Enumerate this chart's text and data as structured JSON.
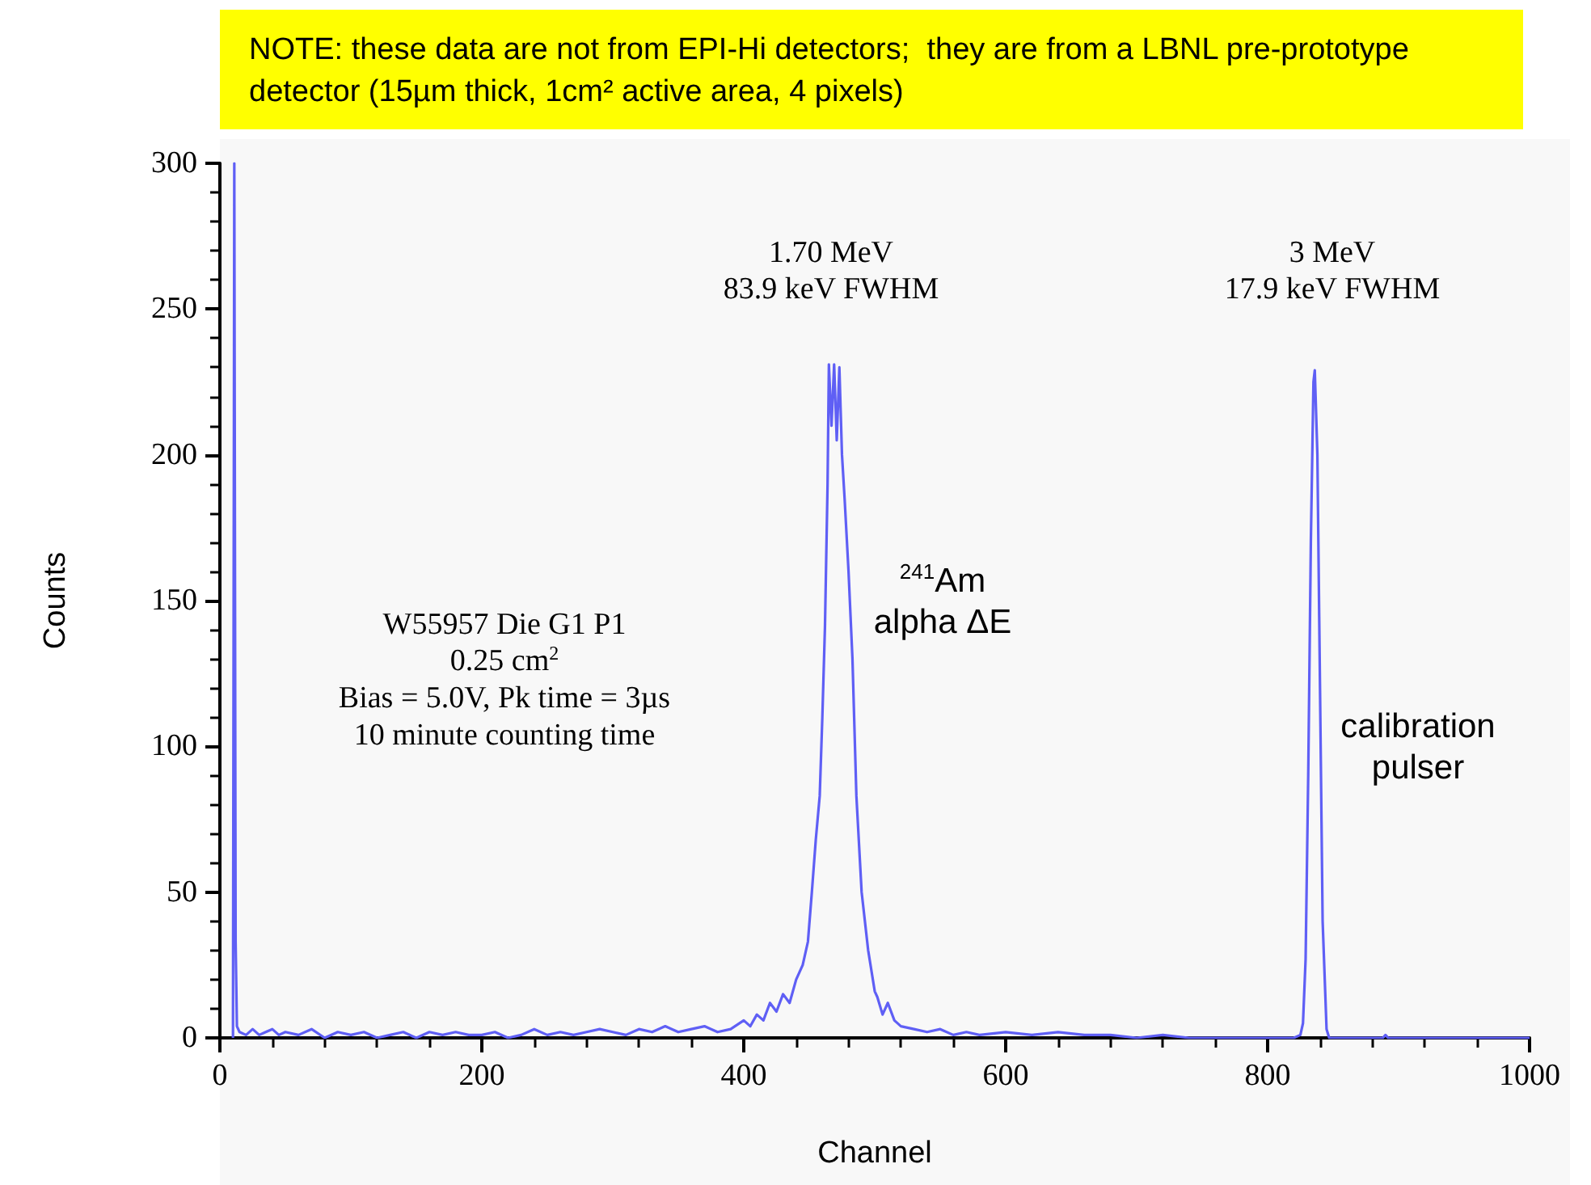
{
  "chart_data": {
    "type": "line",
    "title": "NOTE: these data are not from EPI-Hi detectors;  they are from a LBNL pre-prototype detector (15µm thick, 1cm² active area, 4 pixels)",
    "xlabel": "Channel",
    "ylabel": "Counts",
    "annotations": [
      "1.70 MeV\n83.9 keV FWHM",
      "3 MeV\n17.9 keV FWHM",
      "W55957 Die G1 P1\n0.25 cm$^{2}$\nBias = 5.0V, Pk time = 3µs\n10 minute counting time",
      "$^{241}$Am\nalpha ΔE",
      "calibration\npulser"
    ],
    "xlim": [
      0,
      1000
    ],
    "xticks": [
      0,
      200,
      400,
      600,
      800,
      1000
    ],
    "ylim": [
      0,
      300
    ],
    "yticks": [
      0,
      50,
      100,
      150,
      200,
      250,
      300
    ],
    "grid": false,
    "marker": "none",
    "line_style": "solid",
    "series": [
      {
        "color": "#5f5ff5",
        "x": [
          10,
          11,
          12,
          13,
          15,
          20,
          25,
          30,
          35,
          40,
          45,
          50,
          60,
          70,
          80,
          90,
          100,
          110,
          120,
          130,
          140,
          150,
          160,
          170,
          180,
          190,
          200,
          210,
          220,
          230,
          240,
          250,
          260,
          270,
          280,
          290,
          300,
          310,
          320,
          330,
          340,
          350,
          360,
          370,
          380,
          390,
          400,
          405,
          410,
          415,
          420,
          425,
          430,
          435,
          440,
          445,
          449,
          452,
          455,
          458,
          460,
          462,
          464,
          465,
          467,
          469,
          471,
          473,
          475,
          477,
          480,
          483,
          486,
          490,
          495,
          500,
          502,
          506,
          510,
          515,
          520,
          530,
          540,
          550,
          560,
          570,
          580,
          600,
          620,
          640,
          660,
          680,
          700,
          720,
          740,
          760,
          780,
          800,
          820,
          825,
          827,
          829,
          831,
          833,
          835,
          836,
          838,
          840,
          842,
          845,
          847,
          850,
          870,
          888,
          890,
          892,
          900,
          920,
          950,
          980,
          1000
        ],
        "values": [
          0,
          300,
          33,
          4,
          2,
          1,
          3,
          1,
          2,
          3,
          1,
          2,
          1,
          3,
          0,
          2,
          1,
          2,
          0,
          1,
          2,
          0,
          2,
          1,
          2,
          1,
          1,
          2,
          0,
          1,
          3,
          1,
          2,
          1,
          2,
          3,
          2,
          1,
          3,
          2,
          4,
          2,
          3,
          4,
          2,
          3,
          6,
          4,
          8,
          6,
          12,
          9,
          15,
          12,
          20,
          25,
          33,
          50,
          68,
          83,
          110,
          141,
          190,
          231,
          210,
          231,
          205,
          230,
          200,
          185,
          160,
          130,
          83,
          50,
          30,
          16,
          14,
          8,
          12,
          6,
          4,
          3,
          2,
          3,
          1,
          2,
          1,
          2,
          1,
          2,
          1,
          1,
          0,
          1,
          0,
          0,
          0,
          0,
          0,
          1,
          5,
          27,
          90,
          170,
          225,
          229,
          200,
          120,
          40,
          3,
          0,
          0,
          0,
          0,
          1,
          0,
          0,
          0,
          0,
          0,
          0
        ]
      }
    ]
  }
}
